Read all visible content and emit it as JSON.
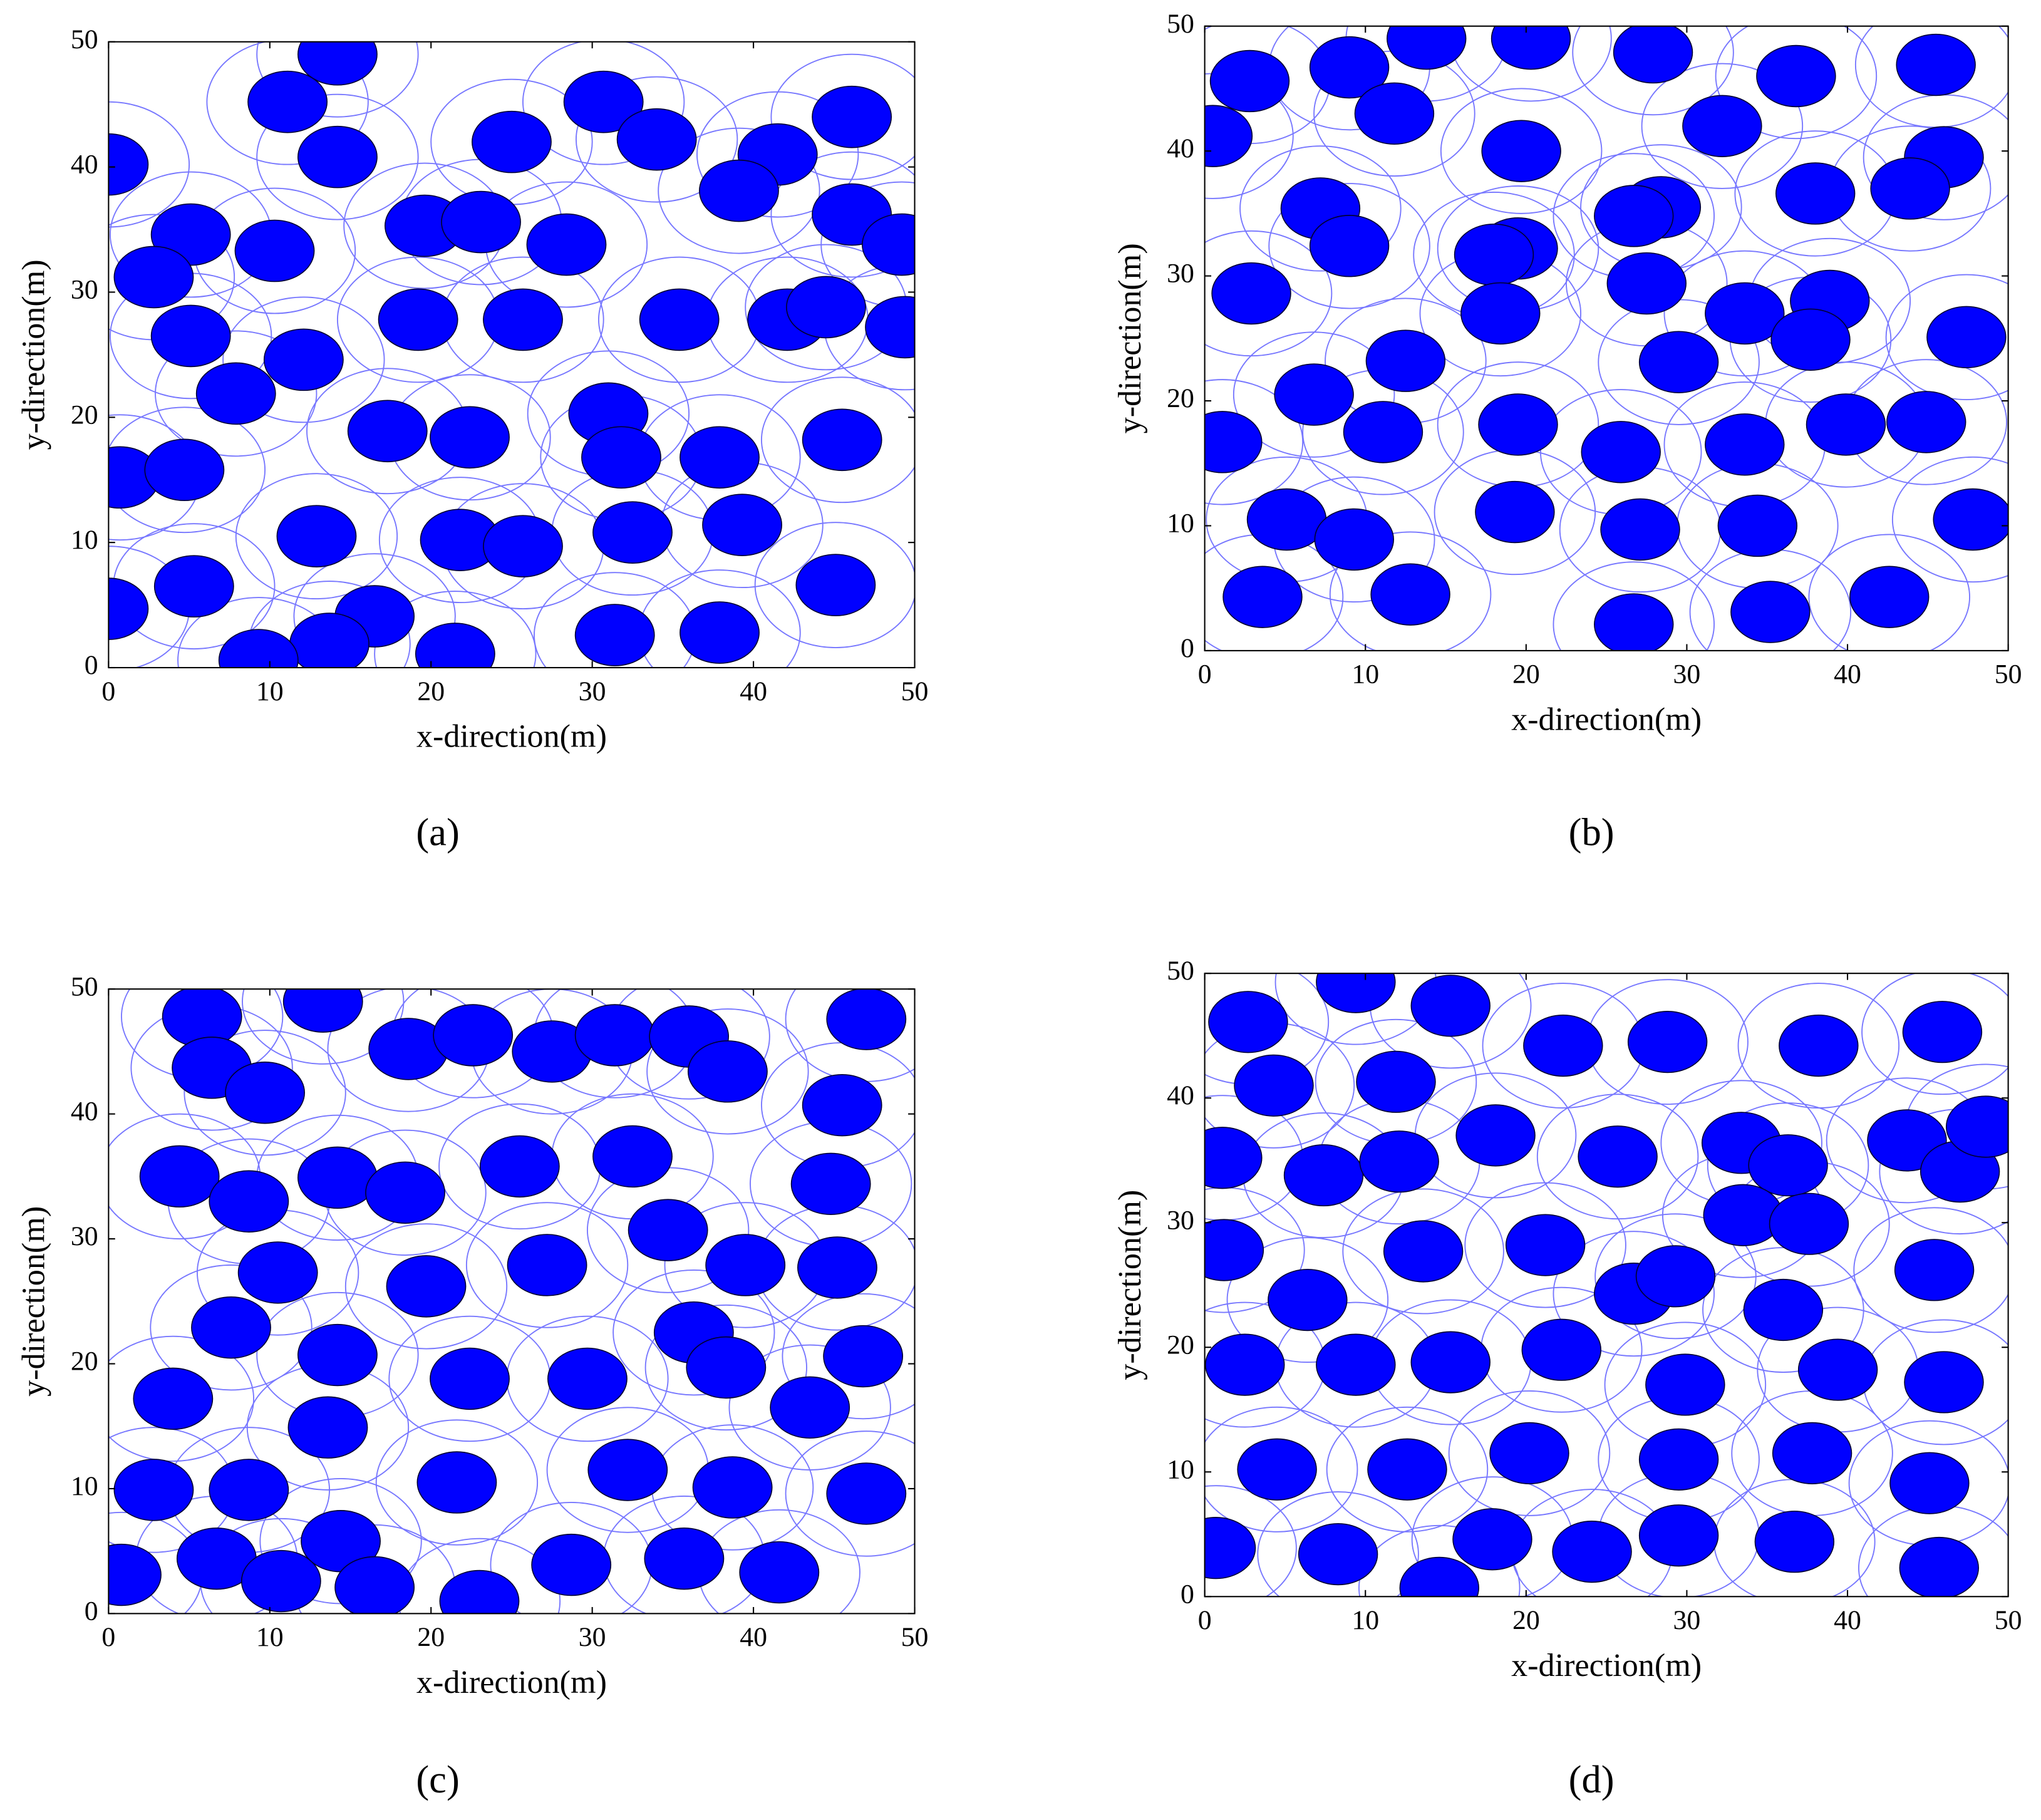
{
  "chart_data": [
    {
      "type": "scatter",
      "caption": "(a)",
      "xlabel": "x-direction(m)",
      "ylabel": "y-direction(m)",
      "xlim": [
        0,
        50
      ],
      "ylim": [
        0,
        50
      ],
      "xticks": [
        0,
        10,
        20,
        30,
        40,
        50
      ],
      "yticks": [
        0,
        10,
        20,
        30,
        40,
        50
      ],
      "color": "#0000ff",
      "ring_color": "#7777ff",
      "grid": false,
      "x": [
        0,
        14.2,
        11.1,
        14.2,
        30.7,
        25,
        34,
        41.5,
        46.1,
        39.1,
        46.1,
        49.2,
        5.1,
        10.3,
        2.8,
        19.6,
        23.1,
        28.4,
        5.1,
        19.2,
        25.7,
        35.4,
        42.1,
        44.5,
        49.4,
        12.1,
        7.9,
        17.3,
        22.4,
        31,
        31.8,
        37.9,
        45.5,
        0.7,
        4.7,
        12.9,
        21.8,
        25.7,
        32.5,
        39.3,
        0,
        5.3,
        16.5,
        13.7,
        9.3,
        21.5,
        31.4,
        37.9,
        45.1
      ],
      "values": [
        40.2,
        49,
        45.2,
        40.8,
        45.2,
        42,
        42.2,
        41,
        44,
        38.1,
        36.2,
        33.8,
        34.6,
        33.3,
        31.2,
        35.3,
        35.6,
        33.8,
        26.5,
        27.8,
        27.8,
        27.8,
        27.8,
        28.8,
        27.2,
        24.6,
        21.9,
        18.9,
        18.4,
        20.3,
        16.8,
        16.8,
        18.2,
        15.2,
        15.8,
        10.5,
        10.2,
        9.7,
        10.8,
        11.4,
        4.7,
        6.5,
        4.1,
        1.9,
        0.6,
        1.1,
        2.6,
        2.8,
        6.6
      ]
    },
    {
      "type": "scatter",
      "caption": "(b)",
      "xlabel": "x-direction(m)",
      "ylabel": "y-direction(m)",
      "xlim": [
        0,
        50
      ],
      "ylim": [
        0,
        50
      ],
      "xticks": [
        0,
        10,
        20,
        30,
        40,
        50
      ],
      "yticks": [
        0,
        10,
        20,
        30,
        40,
        50
      ],
      "color": "#0000ff",
      "ring_color": "#7777ff",
      "grid": false,
      "x": [
        2.8,
        9,
        13.8,
        20.3,
        27.9,
        36.8,
        45.5,
        11.8,
        0.5,
        32.2,
        19.7,
        46,
        43.9,
        38,
        7.2,
        9,
        28.4,
        26.7,
        19.5,
        18,
        2.9,
        18.4,
        27.5,
        33.6,
        38.9,
        37.7,
        47.4,
        12.5,
        29.5,
        6.8,
        11.1,
        19.5,
        25.9,
        33.6,
        39.9,
        44.9,
        1.1,
        5.1,
        9.3,
        19.3,
        27.1,
        34.4,
        47.8,
        3.6,
        12.8,
        26.7,
        35.2,
        42.6
      ],
      "values": [
        45.6,
        46.7,
        49,
        49,
        47.9,
        46,
        46.9,
        43,
        41.2,
        42,
        40,
        39.5,
        37,
        36.6,
        35.4,
        32.4,
        35.5,
        34.8,
        32.2,
        31.7,
        28.6,
        27,
        29.4,
        27,
        28,
        24.9,
        25.1,
        23.2,
        23.1,
        20.5,
        17.5,
        18.1,
        15.9,
        16.5,
        18.1,
        18.3,
        16.7,
        10.5,
        8.9,
        11.1,
        9.7,
        10,
        10.5,
        4.3,
        4.5,
        2.1,
        3.1,
        4.3
      ]
    },
    {
      "type": "scatter",
      "caption": "(c)",
      "xlabel": "x-direction(m)",
      "ylabel": "y-direction(m)",
      "xlim": [
        0,
        50
      ],
      "ylim": [
        0,
        50
      ],
      "xticks": [
        0,
        10,
        20,
        30,
        40,
        50
      ],
      "yticks": [
        0,
        10,
        20,
        30,
        40,
        50
      ],
      "color": "#0000ff",
      "ring_color": "#7777ff",
      "grid": false,
      "x": [
        5.8,
        13.3,
        47,
        6.4,
        9.7,
        18.6,
        22.6,
        27.5,
        31.4,
        36,
        38.4,
        45.5,
        4.4,
        8.7,
        14.2,
        18.4,
        25.5,
        32.5,
        44.8,
        34.7,
        10.5,
        19.7,
        27.2,
        39.5,
        45.2,
        7.6,
        14.2,
        36.3,
        38.3,
        46.8,
        4,
        22.4,
        29.7,
        43.5,
        13.6,
        2.8,
        8.7,
        21.6,
        32.2,
        38.7,
        47,
        0.8,
        6.7,
        10.7,
        14.4,
        16.5,
        23,
        28.7,
        35.7,
        41.6
      ],
      "values": [
        47.8,
        49,
        47.6,
        43.7,
        41.7,
        45.2,
        46.3,
        45,
        46.3,
        46.2,
        43.4,
        40.7,
        35,
        33,
        34.9,
        33.7,
        35.8,
        36.6,
        34.4,
        30.7,
        27.3,
        26.2,
        27.9,
        27.9,
        27.7,
        22.9,
        20.7,
        22.5,
        19.7,
        20.6,
        17.2,
        18.8,
        18.8,
        16.5,
        14.9,
        9.9,
        9.9,
        10.5,
        11.5,
        10.1,
        9.6,
        3.1,
        4.4,
        2.6,
        5.8,
        2.1,
        1,
        3.9,
        4.4,
        3.3
      ]
    },
    {
      "type": "scatter",
      "caption": "(d)",
      "xlabel": "x-direction(m)",
      "ylabel": "y-direction(m)",
      "xlim": [
        0,
        50
      ],
      "ylim": [
        0,
        50
      ],
      "xticks": [
        0,
        10,
        20,
        30,
        40,
        50
      ],
      "yticks": [
        0,
        10,
        20,
        30,
        40,
        50
      ],
      "color": "#0000ff",
      "ring_color": "#7777ff",
      "grid": false,
      "x": [
        2.7,
        9.4,
        15.3,
        4.3,
        11.9,
        22.3,
        28.8,
        38.2,
        45.9,
        1.1,
        7.4,
        12.1,
        18.1,
        25.7,
        33.4,
        36.3,
        43.7,
        47,
        48.6,
        33.5,
        37.6,
        1.2,
        13.6,
        21.2,
        26.7,
        29.3,
        36,
        45.4,
        6.4,
        2.5,
        9.4,
        15.3,
        22.2,
        29.9,
        39.4,
        46,
        4.5,
        12.6,
        20.2,
        29.5,
        37.8,
        45.1,
        0.7,
        8.3,
        17.9,
        24.1,
        29.5,
        36.7,
        45.7,
        14.6
      ],
      "values": [
        46.1,
        49.3,
        47.4,
        41,
        41.3,
        44.2,
        44.5,
        44.2,
        45.3,
        35.2,
        33.8,
        34.9,
        37,
        35.3,
        36.4,
        34.6,
        36.6,
        34.1,
        37.7,
        30.6,
        29.9,
        27.8,
        27.7,
        28.2,
        24.3,
        25.7,
        23,
        26.2,
        23.8,
        18.6,
        18.6,
        18.8,
        19.8,
        17,
        18.2,
        17.2,
        10.2,
        10.2,
        11.5,
        11,
        11.5,
        9.1,
        3.9,
        3.4,
        4.6,
        3.6,
        4.9,
        4.4,
        2.3,
        0.7
      ]
    }
  ]
}
